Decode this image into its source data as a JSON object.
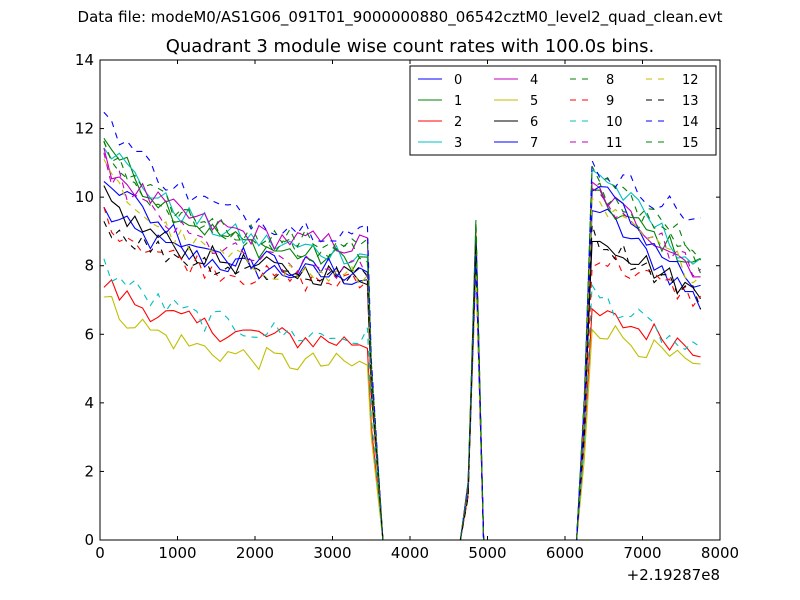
{
  "figure": {
    "suptitle": "Data file: modeM0/AS1G06_091T01_9000000880_06542cztM0_level2_quad_clean.evt"
  },
  "chart_data": {
    "type": "line",
    "title": "Quadrant 3 module wise count rates with 100.0s bins.",
    "xlabel": "",
    "ylabel": "",
    "x_offset_label": "+2.19287e8",
    "xlim": [
      0,
      8000
    ],
    "ylim": [
      0,
      14
    ],
    "xticks": [
      0,
      1000,
      2000,
      3000,
      4000,
      5000,
      6000,
      7000,
      8000
    ],
    "yticks": [
      0,
      2,
      4,
      6,
      8,
      10,
      12,
      14
    ],
    "legend_position": "upper-right",
    "legend_columns": 4,
    "grid": false,
    "colors": {
      "blue": "#0000ff",
      "green": "#008000",
      "red": "#ff0000",
      "cyan": "#00bfbf",
      "magenta": "#bf00bf",
      "olive": "#bfbf00",
      "black": "#000000"
    },
    "series": [
      {
        "name": "0",
        "color": "#0000ff",
        "dash": false,
        "start": 9.6,
        "end": 7.6,
        "post_start": 9.8,
        "post_end": 6.9
      },
      {
        "name": "1",
        "color": "#008000",
        "dash": false,
        "start": 11.8,
        "end": 8.0,
        "post_start": 10.0,
        "post_end": 8.0
      },
      {
        "name": "2",
        "color": "#ff0000",
        "dash": false,
        "start": 7.5,
        "end": 5.7,
        "post_start": 6.6,
        "post_end": 5.6
      },
      {
        "name": "3",
        "color": "#00bfbf",
        "dash": false,
        "start": 11.7,
        "end": 8.2,
        "post_start": 10.9,
        "post_end": 7.9
      },
      {
        "name": "4",
        "color": "#bf00bf",
        "dash": false,
        "start": 11.1,
        "end": 8.5,
        "post_start": 10.3,
        "post_end": 7.8
      },
      {
        "name": "5",
        "color": "#bfbf00",
        "dash": false,
        "start": 7.0,
        "end": 5.0,
        "post_start": 6.3,
        "post_end": 4.9
      },
      {
        "name": "6",
        "color": "#000000",
        "dash": false,
        "start": 10.0,
        "end": 7.6,
        "post_start": 9.0,
        "post_end": 7.1
      },
      {
        "name": "7",
        "color": "#0000ff",
        "dash": false,
        "start": 10.8,
        "end": 7.7,
        "post_start": 10.5,
        "post_end": 7.2
      },
      {
        "name": "8",
        "color": "#008000",
        "dash": true,
        "start": 11.3,
        "end": 8.5,
        "post_start": 10.4,
        "post_end": 8.1
      },
      {
        "name": "9",
        "color": "#ff0000",
        "dash": true,
        "start": 9.4,
        "end": 7.4,
        "post_start": 8.3,
        "post_end": 7.0
      },
      {
        "name": "10",
        "color": "#00bfbf",
        "dash": true,
        "start": 8.0,
        "end": 5.8,
        "post_start": 7.2,
        "post_end": 5.3
      },
      {
        "name": "11",
        "color": "#bf00bf",
        "dash": true,
        "start": 11.0,
        "end": 7.7,
        "post_start": 10.2,
        "post_end": 7.8
      },
      {
        "name": "12",
        "color": "#bfbf00",
        "dash": true,
        "start": 10.8,
        "end": 7.5,
        "post_start": 9.8,
        "post_end": 7.7
      },
      {
        "name": "13",
        "color": "#000000",
        "dash": true,
        "start": 9.3,
        "end": 7.6,
        "post_start": 8.9,
        "post_end": 7.0
      },
      {
        "name": "14",
        "color": "#0000ff",
        "dash": true,
        "start": 12.5,
        "end": 8.8,
        "post_start": 10.9,
        "post_end": 9.3
      },
      {
        "name": "15",
        "color": "#008000",
        "dash": true,
        "start": 11.4,
        "end": 8.2,
        "post_start": 10.8,
        "post_end": 8.4
      }
    ],
    "time_profile": {
      "x_start": 50,
      "bin": 100,
      "active1_end": 3450,
      "drop_zero_x": 3650,
      "spike_rise_start": 4650,
      "spike_low_x": 4750,
      "spike_peak_x": 4850,
      "spike_zero_x": 4950,
      "zero2_end": 6150,
      "active2_start": 6350,
      "active2_end": 7750
    }
  }
}
